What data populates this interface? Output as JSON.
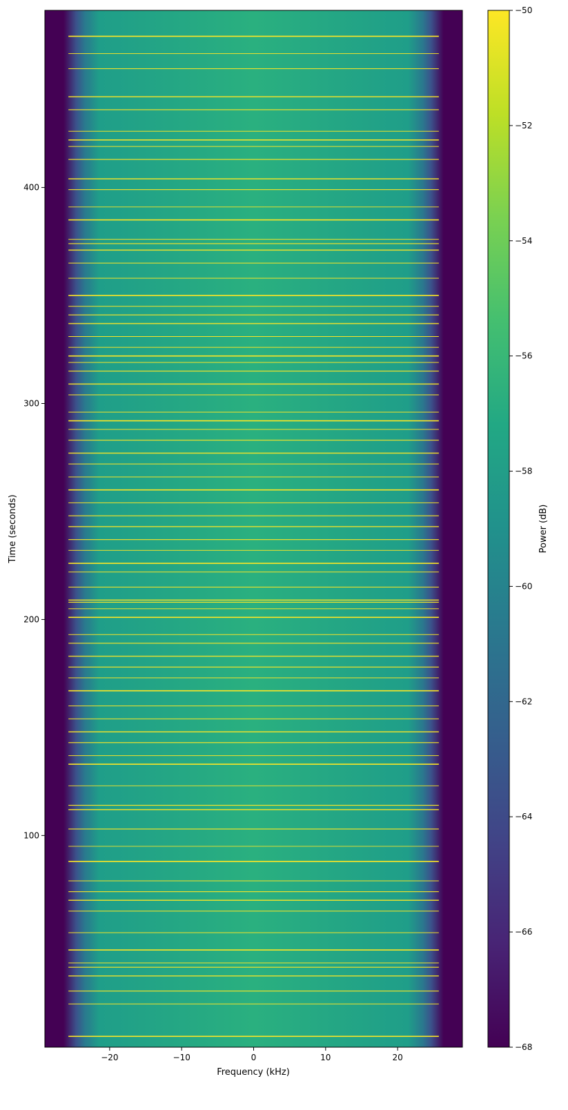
{
  "chart_data": {
    "type": "heatmap",
    "title": "",
    "xlabel": "Frequency (kHz)",
    "ylabel": "Time (seconds)",
    "colorbar_label": "Power (dB)",
    "colormap": "viridis",
    "xlim": [
      -29,
      29
    ],
    "ylim": [
      2,
      482
    ],
    "clim": [
      -68,
      -50
    ],
    "x_ticks": [
      -20,
      -10,
      0,
      10,
      20
    ],
    "x_tick_labels": [
      "−20",
      "−10",
      "0",
      "10",
      "20"
    ],
    "y_ticks": [
      100,
      200,
      300,
      400
    ],
    "y_tick_labels": [
      "100",
      "200",
      "300",
      "400"
    ],
    "colorbar_ticks": [
      -68,
      -66,
      -64,
      -62,
      -60,
      -58,
      -56,
      -54,
      -52,
      -50
    ],
    "colorbar_tick_labels": [
      "−68",
      "−66",
      "−64",
      "−62",
      "−60",
      "−58",
      "−56",
      "−54",
      "−52",
      "−50"
    ],
    "signal_band_khz": [
      -24,
      24
    ],
    "noise_floor_db": -68,
    "band_level_db": -57,
    "burst_level_db": -50,
    "burst_times_s": [
      7,
      22,
      28,
      35,
      39,
      41,
      47,
      55,
      65,
      70,
      74,
      79,
      88,
      95,
      103,
      112,
      114,
      123,
      133,
      137,
      143,
      148,
      154,
      160,
      167,
      173,
      178,
      183,
      189,
      193,
      201,
      205,
      208,
      209,
      215,
      222,
      226,
      232,
      237,
      243,
      248,
      254,
      260,
      266,
      272,
      277,
      283,
      288,
      292,
      296,
      304,
      309,
      315,
      319,
      322,
      326,
      331,
      337,
      341,
      345,
      350,
      358,
      365,
      371,
      374,
      376,
      385,
      391,
      399,
      404,
      413,
      419,
      422,
      426,
      436,
      442,
      455,
      462,
      470
    ]
  }
}
